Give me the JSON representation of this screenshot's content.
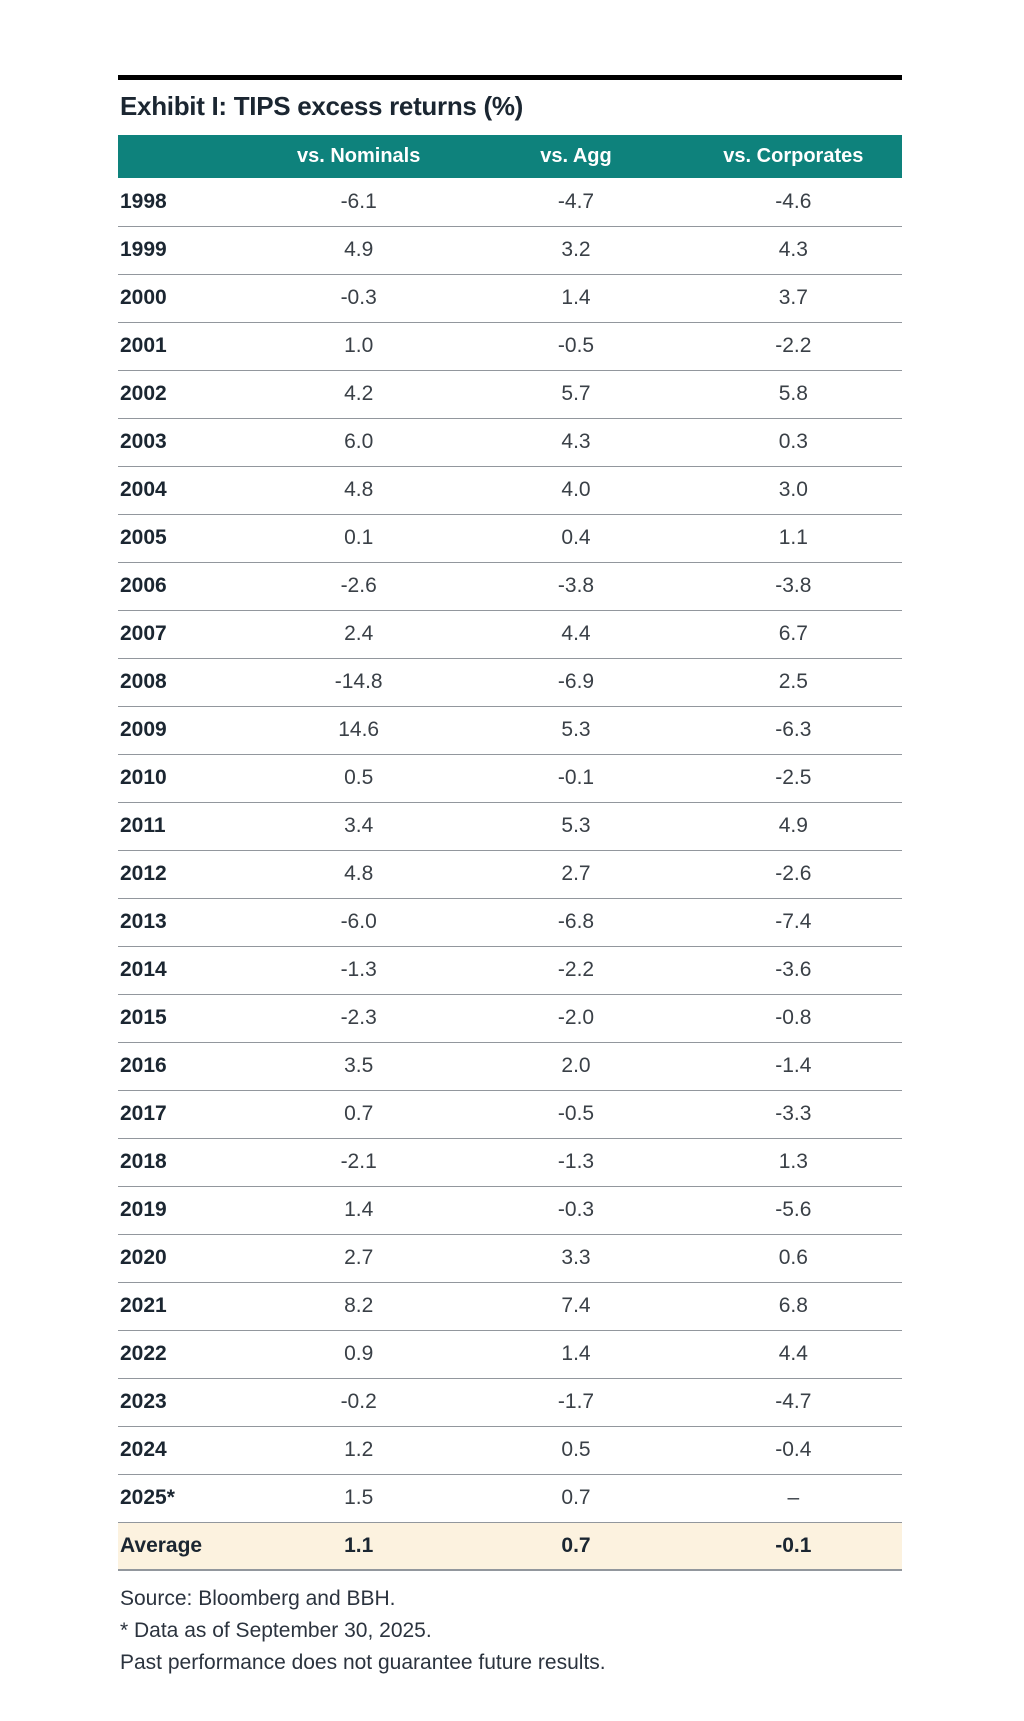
{
  "title": "Exhibit I: TIPS excess returns (%)",
  "table": {
    "headers": [
      "",
      "vs. Nominals",
      "vs. Agg",
      "vs. Corporates"
    ],
    "rows": [
      {
        "year": "1998",
        "values": [
          "-6.1",
          "-4.7",
          "-4.6"
        ]
      },
      {
        "year": "1999",
        "values": [
          "4.9",
          "3.2",
          "4.3"
        ]
      },
      {
        "year": "2000",
        "values": [
          "-0.3",
          "1.4",
          "3.7"
        ]
      },
      {
        "year": "2001",
        "values": [
          "1.0",
          "-0.5",
          "-2.2"
        ]
      },
      {
        "year": "2002",
        "values": [
          "4.2",
          "5.7",
          "5.8"
        ]
      },
      {
        "year": "2003",
        "values": [
          "6.0",
          "4.3",
          "0.3"
        ]
      },
      {
        "year": "2004",
        "values": [
          "4.8",
          "4.0",
          "3.0"
        ]
      },
      {
        "year": "2005",
        "values": [
          "0.1",
          "0.4",
          "1.1"
        ]
      },
      {
        "year": "2006",
        "values": [
          "-2.6",
          "-3.8",
          "-3.8"
        ]
      },
      {
        "year": "2007",
        "values": [
          "2.4",
          "4.4",
          "6.7"
        ]
      },
      {
        "year": "2008",
        "values": [
          "-14.8",
          "-6.9",
          "2.5"
        ]
      },
      {
        "year": "2009",
        "values": [
          "14.6",
          "5.3",
          "-6.3"
        ]
      },
      {
        "year": "2010",
        "values": [
          "0.5",
          "-0.1",
          "-2.5"
        ]
      },
      {
        "year": "2011",
        "values": [
          "3.4",
          "5.3",
          "4.9"
        ]
      },
      {
        "year": "2012",
        "values": [
          "4.8",
          "2.7",
          "-2.6"
        ]
      },
      {
        "year": "2013",
        "values": [
          "-6.0",
          "-6.8",
          "-7.4"
        ]
      },
      {
        "year": "2014",
        "values": [
          "-1.3",
          "-2.2",
          "-3.6"
        ]
      },
      {
        "year": "2015",
        "values": [
          "-2.3",
          "-2.0",
          "-0.8"
        ]
      },
      {
        "year": "2016",
        "values": [
          "3.5",
          "2.0",
          "-1.4"
        ]
      },
      {
        "year": "2017",
        "values": [
          "0.7",
          "-0.5",
          "-3.3"
        ]
      },
      {
        "year": "2018",
        "values": [
          "-2.1",
          "-1.3",
          "1.3"
        ]
      },
      {
        "year": "2019",
        "values": [
          "1.4",
          "-0.3",
          "-5.6"
        ]
      },
      {
        "year": "2020",
        "values": [
          "2.7",
          "3.3",
          "0.6"
        ]
      },
      {
        "year": "2021",
        "values": [
          "8.2",
          "7.4",
          "6.8"
        ]
      },
      {
        "year": "2022",
        "values": [
          "0.9",
          "1.4",
          "4.4"
        ]
      },
      {
        "year": "2023",
        "values": [
          "-0.2",
          "-1.7",
          "-4.7"
        ]
      },
      {
        "year": "2024",
        "values": [
          "1.2",
          "0.5",
          "-0.4"
        ]
      },
      {
        "year": "2025*",
        "values": [
          "1.5",
          "0.7",
          "–"
        ]
      }
    ],
    "average": {
      "label": "Average",
      "values": [
        "1.1",
        "0.7",
        "-0.1"
      ]
    }
  },
  "footnotes": [
    "Source: Bloomberg and BBH.",
    "* Data as of September 30, 2025.",
    "Past performance does not guarantee future results."
  ],
  "colors": {
    "header_bg": "#0e827c",
    "header_text": "#ffffff",
    "title_text": "#1b2631",
    "year_text": "#1b2631",
    "value_text": "#3a4047",
    "separator": "#92979d",
    "average_bg": "#fcf2df",
    "average_text": "#1b2631",
    "footnote_text": "#2b333e",
    "top_bar": "#000000",
    "page_bg": "#ffffff"
  }
}
